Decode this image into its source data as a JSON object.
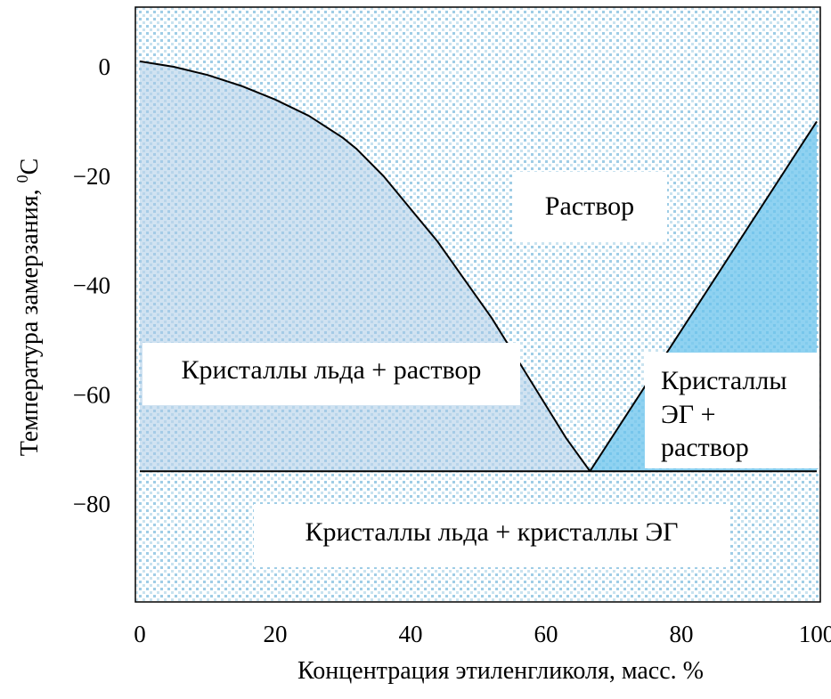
{
  "chart_data": {
    "type": "line",
    "title": "",
    "xlabel": "Концентрация этиленгликоля, масс. %",
    "ylabel": "Температура замерзания, ⁰С",
    "ylabel_base": "Температура замерзания, ",
    "ylabel_sup": "0",
    "ylabel_unit": "С",
    "xlim": [
      0,
      100
    ],
    "ylim": [
      -98,
      11
    ],
    "x_ticks": [
      0,
      20,
      40,
      60,
      80,
      100
    ],
    "y_ticks": [
      0,
      -20,
      -40,
      -60,
      -80
    ],
    "y_tick_labels": [
      "0",
      "−20",
      "−40",
      "−60",
      "−80"
    ],
    "grid": false,
    "series": [
      {
        "x": [
          0,
          5,
          10,
          15,
          20,
          25,
          30,
          32,
          36,
          40,
          44,
          48,
          52,
          56,
          60,
          63,
          66.5
        ],
        "y": [
          1,
          0,
          -1.5,
          -3.5,
          -6,
          -9,
          -13,
          -15,
          -20,
          -26,
          -32,
          -39,
          -46,
          -54,
          -62,
          -68,
          -74
        ]
      },
      {
        "x": [
          66.5,
          100
        ],
        "y": [
          -74,
          -10
        ]
      },
      {
        "x": [
          0,
          100
        ],
        "y": [
          -74,
          -74
        ]
      }
    ],
    "regions": [
      {
        "label_lines": [
          "Раствор"
        ]
      },
      {
        "label_lines": [
          "Кристаллы льда + раствор"
        ]
      },
      {
        "label_lines": [
          "Кристаллы",
          "ЭГ +",
          "раствор"
        ]
      },
      {
        "label_lines": [
          "Кристаллы льда + кристаллы ЭГ"
        ]
      }
    ],
    "colors": {
      "dot_light": "#c9e3f0",
      "dot_dark": "#9fcde6",
      "ice_fill": "#a9cbe6",
      "eg_fill": "#69c3ec",
      "line": "#000000"
    }
  }
}
